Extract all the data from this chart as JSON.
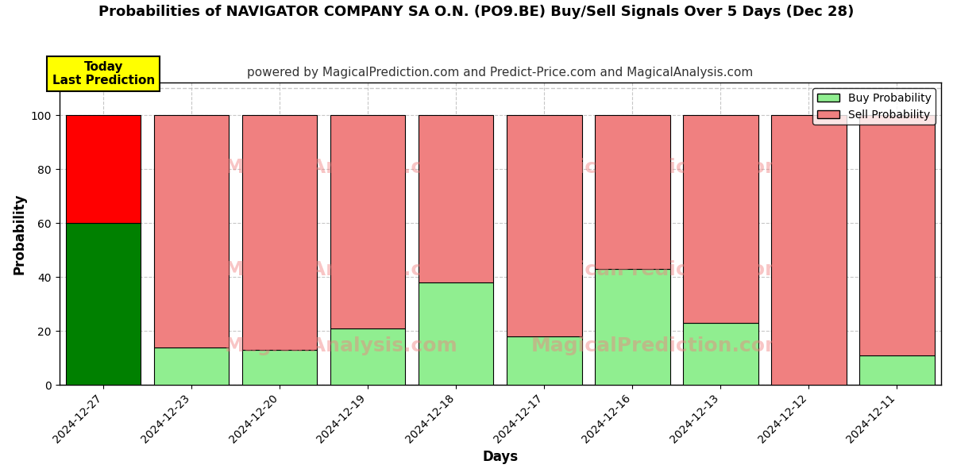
{
  "title": "Probabilities of NAVIGATOR COMPANY SA O.N. (PO9.BE) Buy/Sell Signals Over 5 Days (Dec 28)",
  "subtitle": "powered by MagicalPrediction.com and Predict-Price.com and MagicalAnalysis.com",
  "xlabel": "Days",
  "ylabel": "Probability",
  "dates": [
    "2024-12-27",
    "2024-12-23",
    "2024-12-20",
    "2024-12-19",
    "2024-12-18",
    "2024-12-17",
    "2024-12-16",
    "2024-12-13",
    "2024-12-12",
    "2024-12-11"
  ],
  "buy_probs": [
    60,
    14,
    13,
    21,
    38,
    18,
    43,
    23,
    0,
    11
  ],
  "sell_probs": [
    40,
    86,
    87,
    79,
    62,
    82,
    57,
    77,
    100,
    89
  ],
  "buy_color_today": "#008000",
  "sell_color_today": "#ff0000",
  "buy_color_other": "#90ee90",
  "sell_color_other": "#f08080",
  "bar_edge_color": "#000000",
  "bar_width": 0.85,
  "ylim": [
    0,
    112
  ],
  "yticks": [
    0,
    20,
    40,
    60,
    80,
    100
  ],
  "today_label_text": "Today\nLast Prediction",
  "today_box_color": "#ffff00",
  "today_box_edge": "#000000",
  "legend_buy_label": "Buy Probability",
  "legend_sell_label": "Sell Probability",
  "grid_color": "#b0b0b0",
  "grid_linestyle": "--",
  "grid_alpha": 0.7,
  "dashed_line_y": 110,
  "fig_width": 12,
  "fig_height": 6,
  "title_fontsize": 13,
  "subtitle_fontsize": 11,
  "axis_label_fontsize": 12,
  "tick_fontsize": 10,
  "legend_fontsize": 10,
  "background_color": "#ffffff"
}
